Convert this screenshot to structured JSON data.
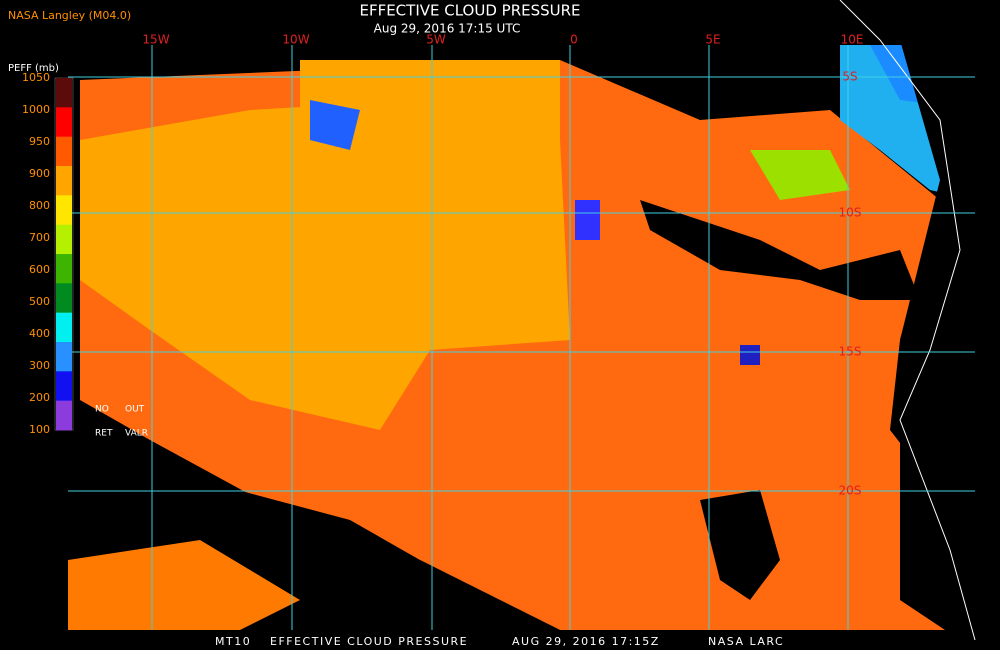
{
  "header": {
    "source": "NASA Langley (M04.0)",
    "title": "EFFECTIVE CLOUD PRESSURE",
    "subtitle": "Aug 29, 2016 17:15 UTC"
  },
  "legend": {
    "label": "PEFF (mb)",
    "ticks": [
      1050,
      1000,
      950,
      900,
      800,
      700,
      600,
      500,
      400,
      300,
      200,
      100
    ],
    "colors": [
      "#5c0a0a",
      "#ff0000",
      "#ff5a00",
      "#ffa500",
      "#ffe600",
      "#b4f000",
      "#3cb400",
      "#008a20",
      "#00f0f0",
      "#2890ff",
      "#1010f0",
      "#8c3cdc"
    ],
    "notes": [
      "NO",
      "OUT",
      "RET",
      "VALR"
    ]
  },
  "map": {
    "lon_labels": [
      "15W",
      "10W",
      "5W",
      "0",
      "5E",
      "10E"
    ],
    "lat_labels": [
      "5S",
      "10S",
      "15S",
      "20S"
    ]
  },
  "footer": {
    "items": [
      "MT10",
      "EFFECTIVE CLOUD PRESSURE",
      "AUG 29, 2016 17:15Z",
      "NASA LARC"
    ]
  }
}
